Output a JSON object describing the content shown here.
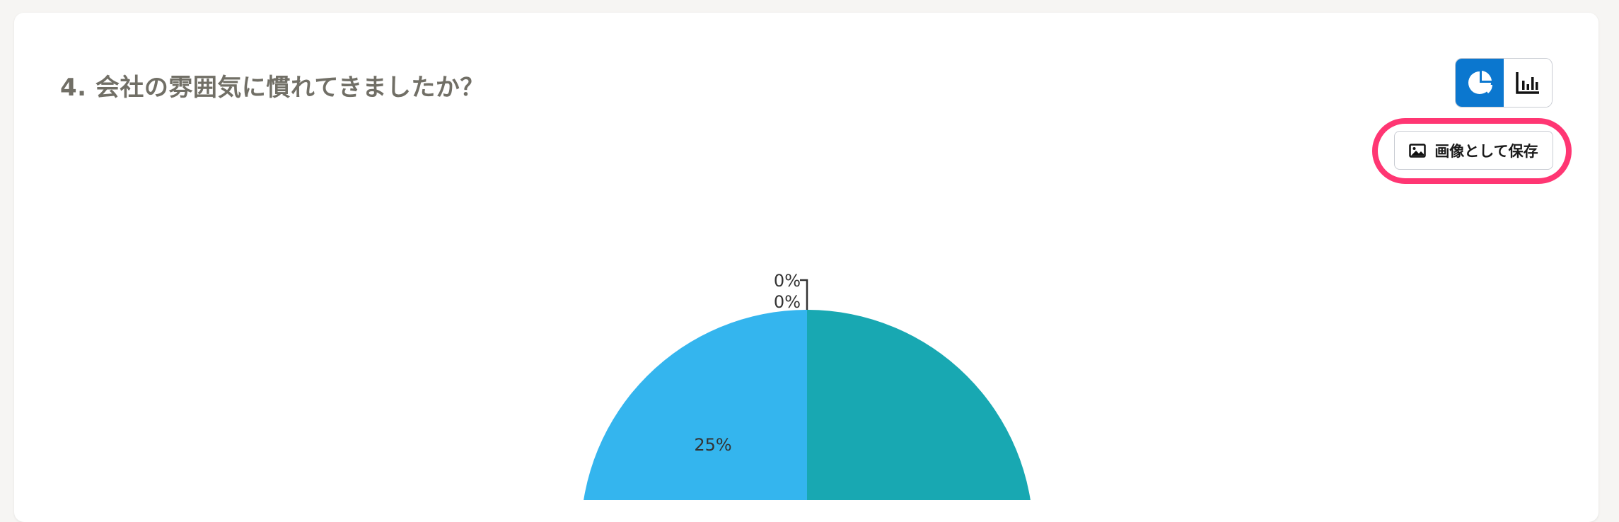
{
  "question": {
    "title": "4. 会社の雰囲気に慣れてきましたか？"
  },
  "view_toggle": {
    "options": [
      "pie-chart-icon",
      "bar-chart-icon"
    ],
    "active": "pie-chart-icon",
    "active_color": "#0b77cf"
  },
  "save_button": {
    "label": "画像として保存",
    "icon": "image-icon",
    "highlight_color": "#ff3673"
  },
  "chart_data": {
    "type": "pie",
    "slices": [
      {
        "label": "0%",
        "value": 0
      },
      {
        "label": "0%",
        "value": 0
      },
      {
        "label": "25%",
        "value": 25,
        "color": "#34b5ee"
      },
      {
        "value": 25,
        "color": "#18a8b2"
      }
    ]
  }
}
